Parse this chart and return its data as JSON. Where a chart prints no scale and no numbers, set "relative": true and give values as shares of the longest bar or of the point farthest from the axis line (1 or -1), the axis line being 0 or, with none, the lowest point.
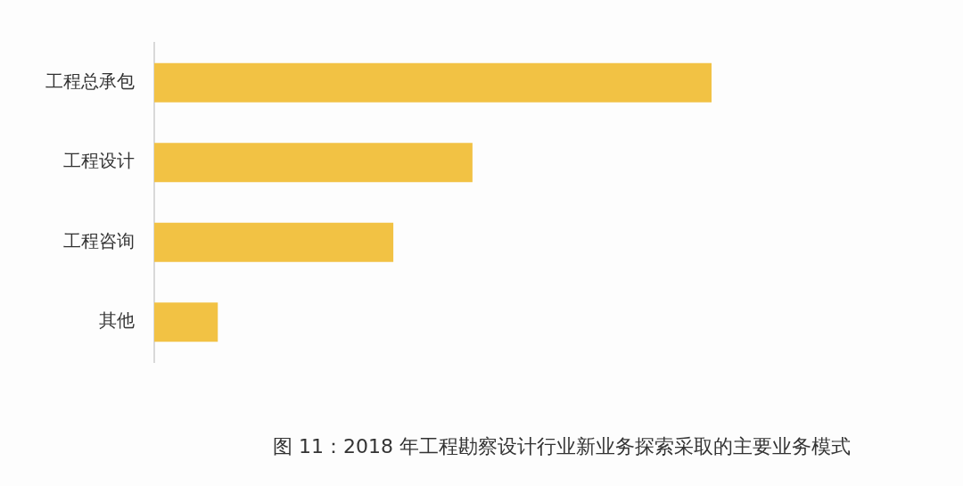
{
  "chart_data": {
    "type": "bar",
    "orientation": "horizontal",
    "relative": true,
    "categories": [
      "工程总承包",
      "工程设计",
      "工程咨询",
      "其他"
    ],
    "values": [
      1,
      0.571,
      0.429,
      0.114
    ],
    "color": "#f2c244",
    "annotations": [
      "图 11：2018 年工程勘察设计行业新业务探索采取的主要业务模式"
    ]
  }
}
